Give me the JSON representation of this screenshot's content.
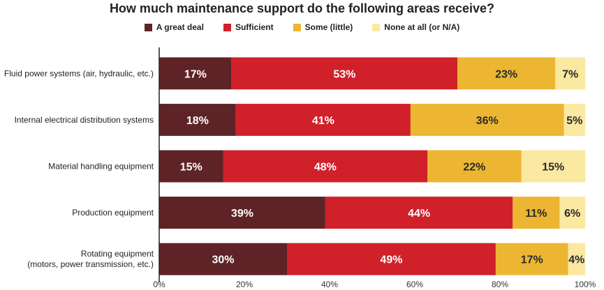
{
  "chart_data": {
    "type": "bar",
    "orientation": "horizontal",
    "stacked": true,
    "title": "How much maintenance support do the following areas receive?",
    "categories": [
      "Fluid power systems (air, hydraulic, etc.)",
      "Internal electrical distribution systems",
      "Material handling equipment",
      "Production equipment",
      "Rotating equipment\n(motors, power transmission, etc.)"
    ],
    "series": [
      {
        "name": "A great deal",
        "color": "#5e2327",
        "values": [
          17,
          18,
          15,
          39,
          30
        ]
      },
      {
        "name": "Sufficient",
        "color": "#d0202a",
        "values": [
          53,
          41,
          48,
          44,
          49
        ]
      },
      {
        "name": "Some (little)",
        "color": "#ecb632",
        "values": [
          23,
          36,
          22,
          11,
          17
        ]
      },
      {
        "name": "None at all (or N/A)",
        "color": "#fbe8a1",
        "values": [
          7,
          5,
          15,
          6,
          4
        ]
      }
    ],
    "xlim": [
      0,
      100
    ],
    "xticks": [
      "0%",
      "20%",
      "40%",
      "60%",
      "80%",
      "100%"
    ],
    "legend_position": "top"
  }
}
